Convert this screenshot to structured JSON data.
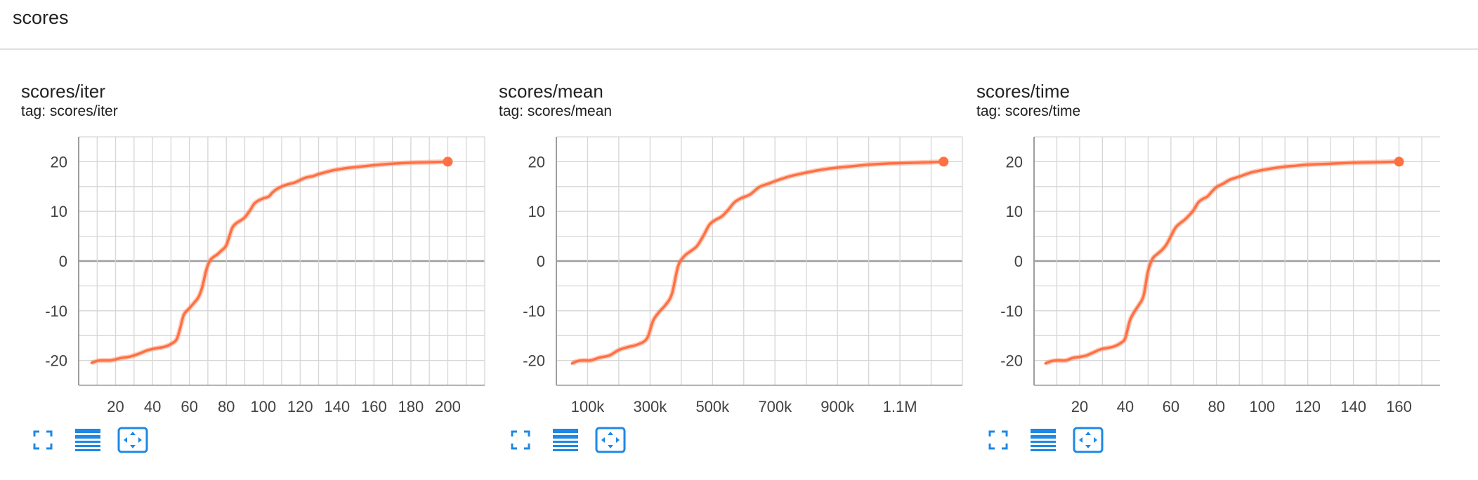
{
  "section": {
    "title": "scores"
  },
  "colors": {
    "accent": "#ff7043",
    "icon": "#1e88e5",
    "grid": "#d6d6d6",
    "axis": "#9e9e9e"
  },
  "toolbar_icons": [
    "fullscreen-icon",
    "data-table-icon",
    "fit-domain-icon"
  ],
  "cards": [
    {
      "title": "scores/iter",
      "tag": "tag: scores/iter"
    },
    {
      "title": "scores/mean",
      "tag": "tag: scores/mean"
    },
    {
      "title": "scores/time",
      "tag": "tag: scores/time"
    }
  ],
  "chart_data": [
    {
      "type": "line",
      "title": "scores/iter",
      "xlabel": "",
      "ylabel": "",
      "xlim": [
        0,
        220
      ],
      "ylim": [
        -25,
        25
      ],
      "xticks": [
        20,
        40,
        60,
        80,
        100,
        120,
        140,
        160,
        180,
        200
      ],
      "xtick_labels": [
        "20",
        "40",
        "60",
        "80",
        "100",
        "120",
        "140",
        "160",
        "180",
        "200"
      ],
      "yticks": [
        20,
        10,
        0,
        -10,
        -20
      ],
      "ytick_labels": [
        "20",
        "10",
        "0",
        "-10",
        "-20"
      ],
      "grid": true,
      "series": [
        {
          "x": [
            7,
            10,
            13,
            17,
            20,
            23,
            27,
            30,
            33,
            37,
            40,
            43,
            47,
            50,
            53,
            55,
            57,
            60,
            63,
            65,
            67,
            69,
            71,
            73,
            75,
            77,
            80,
            83,
            85,
            87,
            90,
            93,
            95,
            97,
            100,
            103,
            105,
            107,
            110,
            113,
            117,
            120,
            123,
            127,
            130,
            133,
            137,
            140,
            145,
            150,
            155,
            160,
            170,
            180,
            190,
            200
          ],
          "values": [
            -20.5,
            -20.1,
            -20.0,
            -20.0,
            -19.8,
            -19.5,
            -19.3,
            -19.0,
            -18.6,
            -18.0,
            -17.7,
            -17.5,
            -17.2,
            -16.7,
            -15.8,
            -13.5,
            -10.8,
            -9.5,
            -8.2,
            -7.2,
            -5.2,
            -2.0,
            0.0,
            0.8,
            1.3,
            2.0,
            3.2,
            6.5,
            7.5,
            8.0,
            8.8,
            10.3,
            11.5,
            12.1,
            12.6,
            13.0,
            13.8,
            14.4,
            15.0,
            15.4,
            15.8,
            16.3,
            16.8,
            17.1,
            17.5,
            17.8,
            18.2,
            18.4,
            18.7,
            18.9,
            19.1,
            19.3,
            19.6,
            19.8,
            19.9,
            20.0
          ]
        }
      ]
    },
    {
      "type": "line",
      "title": "scores/mean",
      "xlabel": "",
      "ylabel": "",
      "xlim": [
        0,
        1300000
      ],
      "ylim": [
        -25,
        25
      ],
      "xticks": [
        100000,
        300000,
        500000,
        700000,
        900000,
        1100000
      ],
      "xtick_labels": [
        "100k",
        "300k",
        "500k",
        "700k",
        "900k",
        "1.1M"
      ],
      "yticks": [
        20,
        10,
        0,
        -10,
        -20
      ],
      "ytick_labels": [
        "20",
        "10",
        "0",
        "-10",
        "-20"
      ],
      "grid": true,
      "series": [
        {
          "x": [
            50000,
            70000,
            90000,
            110000,
            140000,
            170000,
            200000,
            230000,
            260000,
            290000,
            310000,
            330000,
            350000,
            370000,
            390000,
            410000,
            430000,
            450000,
            470000,
            490000,
            510000,
            530000,
            550000,
            570000,
            590000,
            620000,
            650000,
            680000,
            710000,
            750000,
            800000,
            850000,
            900000,
            950000,
            1000000,
            1050000,
            1100000,
            1150000,
            1200000,
            1240000
          ],
          "values": [
            -20.6,
            -20.1,
            -20.0,
            -20.0,
            -19.4,
            -19.0,
            -17.9,
            -17.3,
            -16.8,
            -15.6,
            -12.0,
            -10.2,
            -8.8,
            -6.6,
            -1.0,
            1.0,
            2.0,
            3.0,
            5.0,
            7.3,
            8.3,
            9.0,
            10.3,
            11.8,
            12.6,
            13.4,
            14.9,
            15.6,
            16.3,
            17.1,
            17.8,
            18.4,
            18.8,
            19.1,
            19.4,
            19.6,
            19.7,
            19.8,
            19.9,
            20.0
          ]
        }
      ]
    },
    {
      "type": "line",
      "title": "scores/time",
      "xlabel": "",
      "ylabel": "",
      "xlim": [
        0,
        178
      ],
      "ylim": [
        -25,
        25
      ],
      "xticks": [
        20,
        40,
        60,
        80,
        100,
        120,
        140,
        160
      ],
      "xtick_labels": [
        "20",
        "40",
        "60",
        "80",
        "100",
        "120",
        "140",
        "160"
      ],
      "yticks": [
        20,
        10,
        0,
        -10,
        -20
      ],
      "ytick_labels": [
        "20",
        "10",
        "0",
        "-10",
        "-20"
      ],
      "grid": true,
      "series": [
        {
          "x": [
            5,
            8,
            11,
            14,
            17,
            20,
            23,
            26,
            29,
            32,
            35,
            38,
            40,
            42,
            44,
            46,
            48,
            50,
            52,
            54,
            56,
            58,
            60,
            62,
            64,
            66,
            68,
            70,
            72,
            74,
            76,
            78,
            80,
            83,
            86,
            90,
            95,
            100,
            105,
            110,
            115,
            120,
            130,
            140,
            150,
            160
          ],
          "values": [
            -20.6,
            -20.1,
            -20.0,
            -20.0,
            -19.5,
            -19.3,
            -19.0,
            -18.4,
            -17.8,
            -17.5,
            -17.2,
            -16.5,
            -15.5,
            -12.0,
            -10.2,
            -8.8,
            -7.0,
            -2.0,
            0.5,
            1.4,
            2.2,
            3.3,
            5.0,
            6.7,
            7.6,
            8.3,
            9.2,
            10.3,
            11.8,
            12.5,
            13.0,
            14.0,
            14.9,
            15.6,
            16.4,
            17.0,
            17.8,
            18.3,
            18.7,
            19.0,
            19.2,
            19.4,
            19.6,
            19.8,
            19.9,
            20.0
          ]
        }
      ]
    }
  ]
}
